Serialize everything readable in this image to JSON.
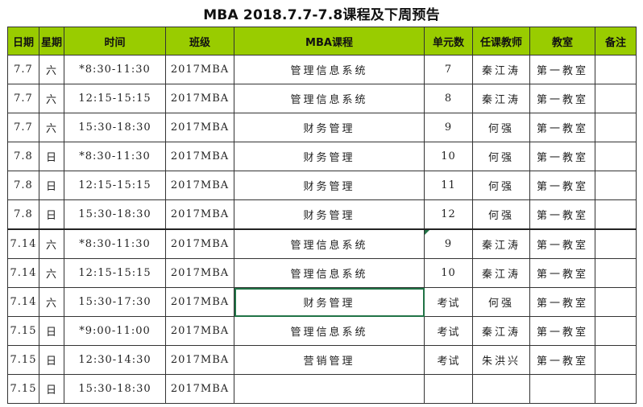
{
  "title": "MBA 2018.7.7-7.8课程及下周预告",
  "colors": {
    "header_bg": "#99cc00",
    "selection": "#217346"
  },
  "columns": [
    "日期",
    "星期",
    "时间",
    "班级",
    "MBA课程",
    "单元数",
    "任课教师",
    "教室",
    "备注"
  ],
  "rows": [
    [
      "7.7",
      "六",
      "*8:30-11:30",
      "2017MBA",
      "管理信息系统",
      "7",
      "秦江涛",
      "第一教室",
      ""
    ],
    [
      "7.7",
      "六",
      "12:15-15:15",
      "2017MBA",
      "管理信息系统",
      "8",
      "秦江涛",
      "第一教室",
      ""
    ],
    [
      "7.7",
      "六",
      "15:30-18:30",
      "2017MBA",
      "财务管理",
      "9",
      "何强",
      "第一教室",
      ""
    ],
    [
      "7.8",
      "日",
      "*8:30-11:30",
      "2017MBA",
      "财务管理",
      "10",
      "何强",
      "第一教室",
      ""
    ],
    [
      "7.8",
      "日",
      "12:15-15:15",
      "2017MBA",
      "财务管理",
      "11",
      "何强",
      "第一教室",
      ""
    ],
    [
      "7.8",
      "日",
      "15:30-18:30",
      "2017MBA",
      "财务管理",
      "12",
      "何强",
      "第一教室",
      ""
    ],
    [
      "7.14",
      "六",
      "*8:30-11:30",
      "2017MBA",
      "管理信息系统",
      "9",
      "秦江涛",
      "第一教室",
      ""
    ],
    [
      "7.14",
      "六",
      "12:15-15:15",
      "2017MBA",
      "管理信息系统",
      "10",
      "秦江涛",
      "第一教室",
      ""
    ],
    [
      "7.14",
      "六",
      "15:30-17:30",
      "2017MBA",
      "财务管理",
      "考试",
      "何强",
      "第一教室",
      ""
    ],
    [
      "7.15",
      "日",
      "*9:00-11:00",
      "2017MBA",
      "管理信息系统",
      "考试",
      "秦江涛",
      "第一教室",
      ""
    ],
    [
      "7.15",
      "日",
      "12:30-14:30",
      "2017MBA",
      "营销管理",
      "考试",
      "朱洪兴",
      "第一教室",
      ""
    ],
    [
      "7.15",
      "日",
      "15:30-18:30",
      "2017MBA",
      "",
      "",
      "",
      "",
      ""
    ]
  ]
}
